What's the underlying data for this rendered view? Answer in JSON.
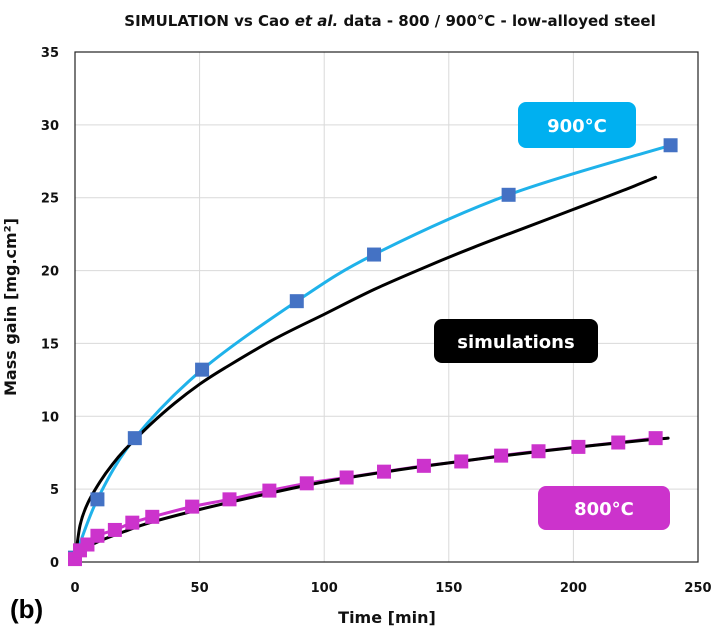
{
  "panel_label": "(b)",
  "colors": {
    "cyan_line": "#1fb2ea",
    "blue_marker": "#4472c4",
    "magenta": "#cc33cc",
    "black_line": "#000000",
    "grid": "#d9d9d9"
  },
  "chart_data": {
    "type": "line",
    "title": {
      "prefix": "SIMULATION vs Cao ",
      "emphasis": "et al.",
      "suffix": " data - 800 / 900°C - low-alloyed steel"
    },
    "xlabel": "Time [min]",
    "ylabel": "Mass gain [mg.cm²]",
    "xlim": [
      0,
      250
    ],
    "ylim": [
      0,
      35
    ],
    "xticks": [
      0,
      50,
      100,
      150,
      200,
      250
    ],
    "yticks": [
      0,
      5,
      10,
      15,
      20,
      25,
      30,
      35
    ],
    "grid": true,
    "series": [
      {
        "name": "900°C data",
        "kind": "markers+line",
        "line_color": "#1fb2ea",
        "marker": "square",
        "marker_color": "#4472c4",
        "x": [
          0,
          9,
          24,
          51,
          89,
          120,
          174,
          239
        ],
        "y": [
          0.3,
          4.3,
          8.5,
          13.2,
          17.9,
          21.1,
          25.2,
          28.6
        ]
      },
      {
        "name": "800°C data",
        "kind": "markers+line",
        "line_color": "#cc33cc",
        "marker": "square",
        "marker_color": "#cc33cc",
        "x": [
          0,
          2,
          5,
          9,
          16,
          23,
          31,
          47,
          62,
          78,
          93,
          109,
          124,
          140,
          155,
          171,
          186,
          202,
          218,
          233
        ],
        "y": [
          0.2,
          0.8,
          1.2,
          1.8,
          2.2,
          2.7,
          3.1,
          3.8,
          4.3,
          4.9,
          5.4,
          5.8,
          6.2,
          6.6,
          6.9,
          7.3,
          7.6,
          7.9,
          8.2,
          8.5
        ]
      },
      {
        "name": "simulation 900°C",
        "kind": "line",
        "line_color": "#000000",
        "x": [
          0,
          2,
          5,
          10,
          15,
          20,
          30,
          40,
          50,
          60,
          80,
          100,
          120,
          140,
          160,
          180,
          200,
          220,
          233
        ],
        "y": [
          0,
          2.5,
          4.0,
          5.5,
          6.7,
          7.7,
          9.4,
          10.9,
          12.2,
          13.3,
          15.3,
          17.0,
          18.7,
          20.2,
          21.6,
          22.9,
          24.2,
          25.5,
          26.4
        ]
      },
      {
        "name": "simulation 800°C",
        "kind": "line",
        "line_color": "#000000",
        "x": [
          0,
          2,
          5,
          10,
          20,
          30,
          50,
          75,
          100,
          125,
          150,
          175,
          200,
          225,
          238
        ],
        "y": [
          0,
          0.6,
          1.0,
          1.45,
          2.1,
          2.7,
          3.6,
          4.6,
          5.5,
          6.2,
          6.8,
          7.35,
          7.85,
          8.3,
          8.5
        ]
      }
    ],
    "annotations": [
      {
        "text": "900°C",
        "fill": "#00b0f0"
      },
      {
        "text": "simulations",
        "fill": "#000000"
      },
      {
        "text": "800°C",
        "fill": "#cc33cc"
      }
    ]
  }
}
